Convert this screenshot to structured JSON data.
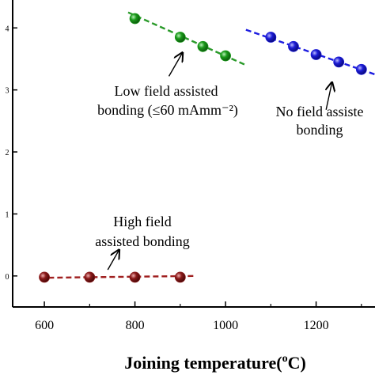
{
  "chart_data": {
    "type": "scatter",
    "title": "",
    "xlabel": "Joining temperature(",
    "xlabel_sup": "o",
    "xlabel_tail": "C)",
    "ylabel": "",
    "xlim": [
      530,
      1330
    ],
    "ylim": [
      -0.5,
      4.45
    ],
    "x_ticks": [
      600,
      800,
      1000,
      1200
    ],
    "y_ticks": [
      0,
      1,
      2,
      3,
      4
    ],
    "grid": false,
    "series": [
      {
        "color": "#1a9a1a",
        "fit_color": "#2a9a2a",
        "x": [
          800,
          900,
          950,
          1000
        ],
        "y": [
          4.15,
          3.85,
          3.7,
          3.55
        ],
        "fit_x": [
          785,
          1045
        ],
        "fit_y": [
          4.25,
          3.4
        ]
      },
      {
        "color": "#1c1cd6",
        "fit_color": "#1c1ce0",
        "x": [
          1100,
          1150,
          1200,
          1250,
          1300
        ],
        "y": [
          3.85,
          3.7,
          3.57,
          3.45,
          3.33
        ],
        "fit_x": [
          1045,
          1330
        ],
        "fit_y": [
          3.97,
          3.25
        ]
      },
      {
        "color": "#8b1a1a",
        "fit_color": "#a02020",
        "x": [
          600,
          700,
          800,
          900
        ],
        "y": [
          -0.02,
          -0.02,
          -0.02,
          -0.02
        ],
        "fit_x": [
          590,
          935
        ],
        "fit_y": [
          -0.03,
          0.0
        ]
      }
    ],
    "annotations": [
      {
        "lines": [
          "Low field assisted",
          "bonding (≤60 mAmm⁻²)"
        ],
        "arrow_from": [
          875,
          3.22
        ],
        "arrow_to": [
          905,
          3.6
        ]
      },
      {
        "lines": [
          "No field assiste",
          "bonding"
        ],
        "arrow_from": [
          1222,
          2.68
        ],
        "arrow_to": [
          1235,
          3.12
        ]
      },
      {
        "lines": [
          "High field",
          "assisted bonding"
        ],
        "arrow_from": [
          740,
          0.1
        ],
        "arrow_to": [
          765,
          0.42
        ]
      }
    ]
  }
}
